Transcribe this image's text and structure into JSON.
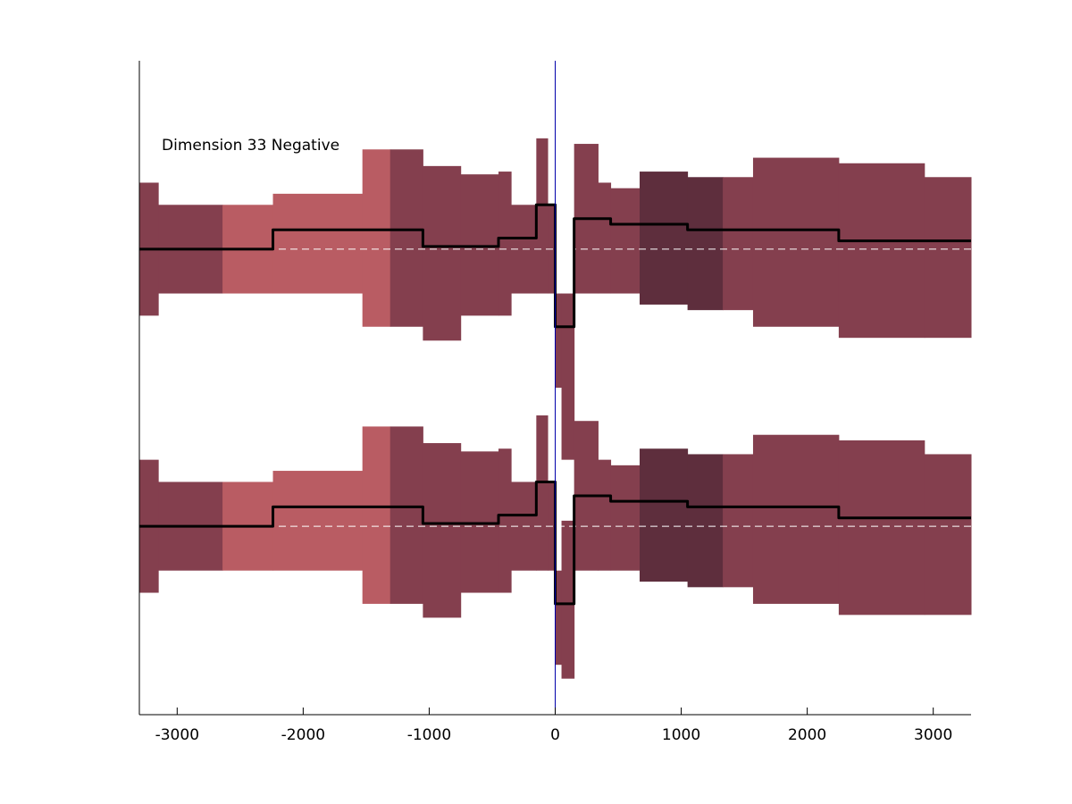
{
  "chart_data": {
    "type": "area",
    "title": "",
    "annotation": "Dimension 33 Negative",
    "xlabel": "",
    "ylabel": "",
    "xlim": [
      -3300,
      3300
    ],
    "ylim": [
      -1.18,
      1.18
    ],
    "xticks": [
      -3000,
      -2000,
      -1000,
      0,
      1000,
      2000,
      3000
    ],
    "xtick_labels": [
      "-3000",
      "-2000",
      "-1000",
      "0",
      "1000",
      "2000",
      "3000"
    ],
    "yticks_shown": false,
    "grid": false,
    "legend": "none",
    "colors": {
      "band_default": "#843f4e",
      "band_light": "#b95c63",
      "band_dark": "#5e2e3d",
      "mean_line": "#000000",
      "baseline": "#ffffff",
      "vline": "#0000aa"
    },
    "vertical_line_x": 0,
    "series": [
      {
        "baseline_y": 0.5,
        "segments": [
          {
            "x0": -3300,
            "x1": -3150,
            "lo": 0.26,
            "hi": 0.74,
            "mean": 0.5,
            "shade": "band_default"
          },
          {
            "x0": -3150,
            "x1": -2640,
            "lo": 0.34,
            "hi": 0.66,
            "mean": 0.5,
            "shade": "band_default"
          },
          {
            "x0": -2640,
            "x1": -2240,
            "lo": 0.34,
            "hi": 0.66,
            "mean": 0.5,
            "shade": "band_light"
          },
          {
            "x0": -2240,
            "x1": -1530,
            "lo": 0.34,
            "hi": 0.7,
            "mean": 0.57,
            "shade": "band_light"
          },
          {
            "x0": -1530,
            "x1": -1310,
            "lo": 0.22,
            "hi": 0.86,
            "mean": 0.57,
            "shade": "band_light"
          },
          {
            "x0": -1310,
            "x1": -1050,
            "lo": 0.22,
            "hi": 0.86,
            "mean": 0.57,
            "shade": "band_default"
          },
          {
            "x0": -1050,
            "x1": -750,
            "lo": 0.17,
            "hi": 0.8,
            "mean": 0.51,
            "shade": "band_default"
          },
          {
            "x0": -750,
            "x1": -450,
            "lo": 0.26,
            "hi": 0.77,
            "mean": 0.51,
            "shade": "band_default"
          },
          {
            "x0": -450,
            "x1": -350,
            "lo": 0.26,
            "hi": 0.78,
            "mean": 0.54,
            "shade": "band_default"
          },
          {
            "x0": -350,
            "x1": -150,
            "lo": 0.34,
            "hi": 0.66,
            "mean": 0.54,
            "shade": "band_default"
          },
          {
            "x0": -150,
            "x1": -60,
            "lo": 0.34,
            "hi": 0.9,
            "mean": 0.66,
            "shade": "band_default"
          },
          {
            "x0": -60,
            "x1": 0,
            "lo": 0.34,
            "hi": 0.66,
            "mean": 0.66,
            "shade": "band_default"
          },
          {
            "x0": 0,
            "x1": 50,
            "lo": 0.0,
            "hi": 0.34,
            "mean": 0.22,
            "shade": "band_default"
          },
          {
            "x0": 50,
            "x1": 150,
            "lo": -0.26,
            "hi": 0.34,
            "mean": 0.22,
            "shade": "band_default"
          },
          {
            "x0": 150,
            "x1": 340,
            "lo": 0.34,
            "hi": 0.88,
            "mean": 0.61,
            "shade": "band_default"
          },
          {
            "x0": 340,
            "x1": 440,
            "lo": 0.34,
            "hi": 0.74,
            "mean": 0.61,
            "shade": "band_default"
          },
          {
            "x0": 440,
            "x1": 670,
            "lo": 0.34,
            "hi": 0.72,
            "mean": 0.59,
            "shade": "band_default"
          },
          {
            "x0": 670,
            "x1": 1050,
            "lo": 0.3,
            "hi": 0.78,
            "mean": 0.59,
            "shade": "band_dark"
          },
          {
            "x0": 1050,
            "x1": 1330,
            "lo": 0.28,
            "hi": 0.76,
            "mean": 0.57,
            "shade": "band_dark"
          },
          {
            "x0": 1330,
            "x1": 1570,
            "lo": 0.28,
            "hi": 0.76,
            "mean": 0.57,
            "shade": "band_default"
          },
          {
            "x0": 1570,
            "x1": 2250,
            "lo": 0.22,
            "hi": 0.83,
            "mean": 0.57,
            "shade": "band_default"
          },
          {
            "x0": 2250,
            "x1": 2930,
            "lo": 0.18,
            "hi": 0.81,
            "mean": 0.53,
            "shade": "band_default"
          },
          {
            "x0": 2930,
            "x1": 3300,
            "lo": 0.18,
            "hi": 0.76,
            "mean": 0.53,
            "shade": "band_default"
          }
        ]
      },
      {
        "baseline_y": -0.5,
        "segments": [
          {
            "x0": -3300,
            "x1": -3150,
            "lo": -0.74,
            "hi": -0.26,
            "mean": -0.5,
            "shade": "band_default"
          },
          {
            "x0": -3150,
            "x1": -2640,
            "lo": -0.66,
            "hi": -0.34,
            "mean": -0.5,
            "shade": "band_default"
          },
          {
            "x0": -2640,
            "x1": -2240,
            "lo": -0.66,
            "hi": -0.34,
            "mean": -0.5,
            "shade": "band_light"
          },
          {
            "x0": -2240,
            "x1": -1530,
            "lo": -0.66,
            "hi": -0.3,
            "mean": -0.43,
            "shade": "band_light"
          },
          {
            "x0": -1530,
            "x1": -1310,
            "lo": -0.78,
            "hi": -0.14,
            "mean": -0.43,
            "shade": "band_light"
          },
          {
            "x0": -1310,
            "x1": -1050,
            "lo": -0.78,
            "hi": -0.14,
            "mean": -0.43,
            "shade": "band_default"
          },
          {
            "x0": -1050,
            "x1": -750,
            "lo": -0.83,
            "hi": -0.2,
            "mean": -0.49,
            "shade": "band_default"
          },
          {
            "x0": -750,
            "x1": -450,
            "lo": -0.74,
            "hi": -0.23,
            "mean": -0.49,
            "shade": "band_default"
          },
          {
            "x0": -450,
            "x1": -350,
            "lo": -0.74,
            "hi": -0.22,
            "mean": -0.46,
            "shade": "band_default"
          },
          {
            "x0": -350,
            "x1": -150,
            "lo": -0.66,
            "hi": -0.34,
            "mean": -0.46,
            "shade": "band_default"
          },
          {
            "x0": -150,
            "x1": -60,
            "lo": -0.66,
            "hi": -0.1,
            "mean": -0.34,
            "shade": "band_default"
          },
          {
            "x0": -60,
            "x1": 0,
            "lo": -0.66,
            "hi": -0.34,
            "mean": -0.34,
            "shade": "band_default"
          },
          {
            "x0": 0,
            "x1": 50,
            "lo": -1.0,
            "hi": -0.66,
            "mean": -0.78,
            "shade": "band_default"
          },
          {
            "x0": 50,
            "x1": 150,
            "lo": -1.05,
            "hi": -0.48,
            "mean": -0.78,
            "shade": "band_default"
          },
          {
            "x0": 150,
            "x1": 340,
            "lo": -0.66,
            "hi": -0.12,
            "mean": -0.39,
            "shade": "band_default"
          },
          {
            "x0": 340,
            "x1": 440,
            "lo": -0.66,
            "hi": -0.26,
            "mean": -0.39,
            "shade": "band_default"
          },
          {
            "x0": 440,
            "x1": 670,
            "lo": -0.66,
            "hi": -0.28,
            "mean": -0.41,
            "shade": "band_default"
          },
          {
            "x0": 670,
            "x1": 1050,
            "lo": -0.7,
            "hi": -0.22,
            "mean": -0.41,
            "shade": "band_dark"
          },
          {
            "x0": 1050,
            "x1": 1330,
            "lo": -0.72,
            "hi": -0.24,
            "mean": -0.43,
            "shade": "band_dark"
          },
          {
            "x0": 1330,
            "x1": 1570,
            "lo": -0.72,
            "hi": -0.24,
            "mean": -0.43,
            "shade": "band_default"
          },
          {
            "x0": 1570,
            "x1": 2250,
            "lo": -0.78,
            "hi": -0.17,
            "mean": -0.43,
            "shade": "band_default"
          },
          {
            "x0": 2250,
            "x1": 2930,
            "lo": -0.82,
            "hi": -0.19,
            "mean": -0.47,
            "shade": "band_default"
          },
          {
            "x0": 2930,
            "x1": 3300,
            "lo": -0.82,
            "hi": -0.24,
            "mean": -0.47,
            "shade": "band_default"
          }
        ]
      }
    ]
  }
}
